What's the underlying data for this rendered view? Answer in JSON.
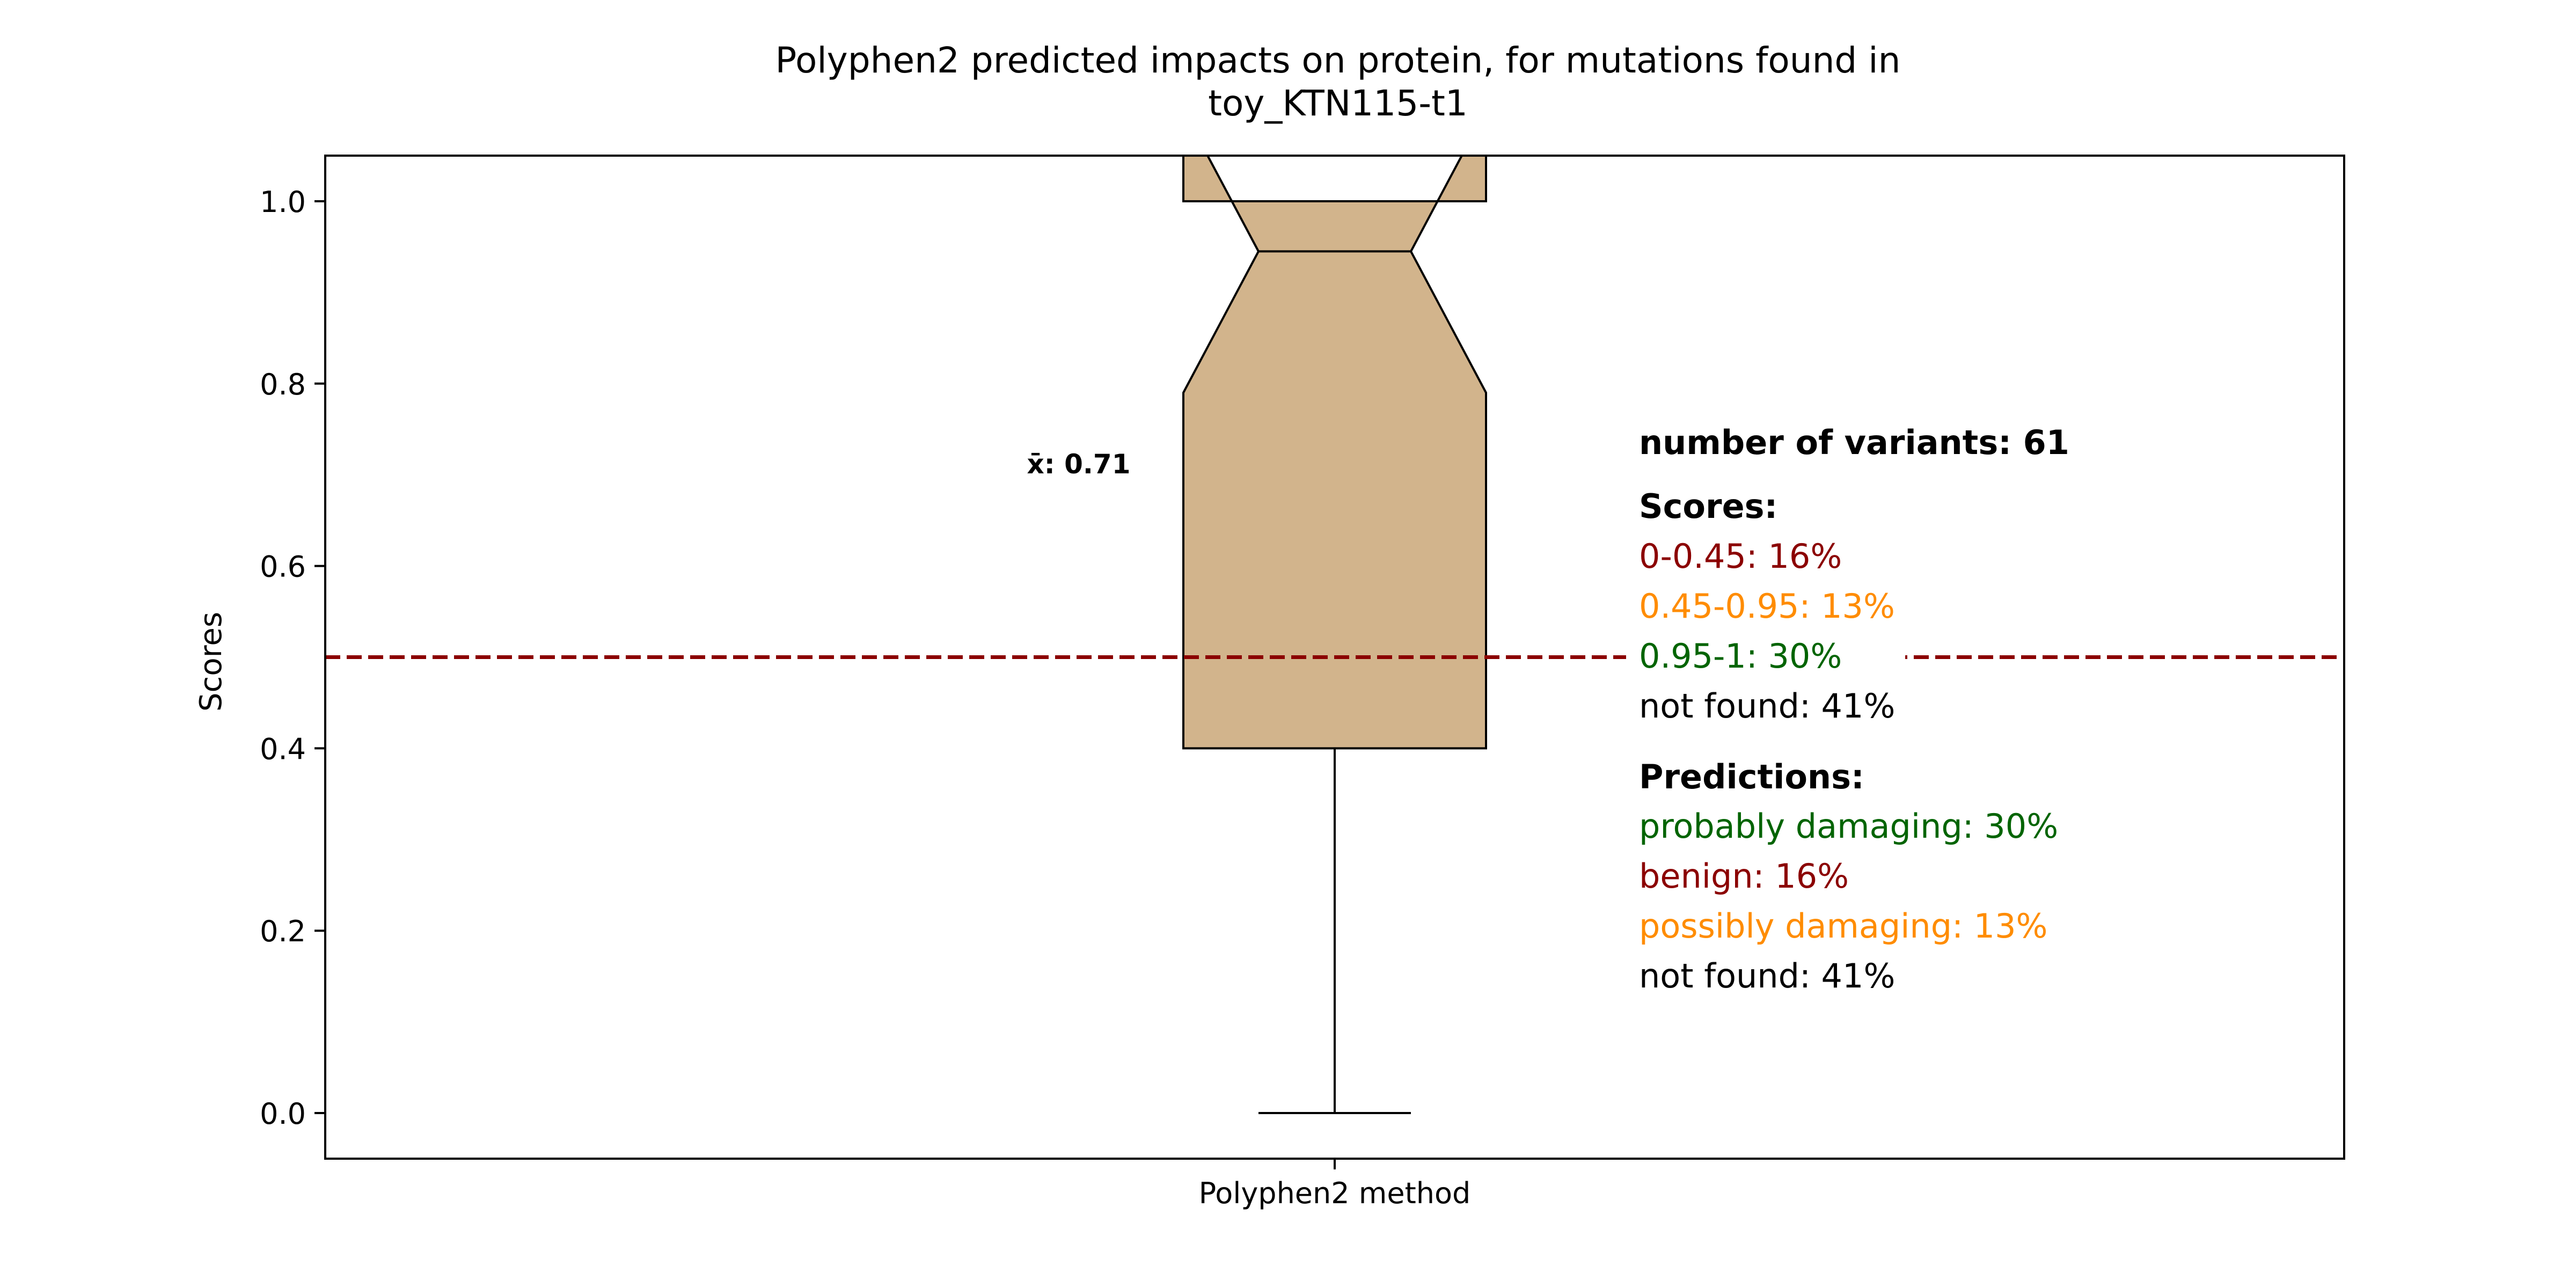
{
  "chart_data": {
    "type": "boxplot",
    "title_line1": "Polyphen2 predicted impacts on protein, for mutations found in",
    "title_line2": "toy_KTN115-t1",
    "ylabel": "Scores",
    "xlabel": "",
    "categories": [
      "Polyphen2 method"
    ],
    "ylim": [
      -0.05,
      1.05
    ],
    "yticks": [
      0.0,
      0.2,
      0.4,
      0.6,
      0.8,
      1.0
    ],
    "ytick_labels": [
      "0.0",
      "0.2",
      "0.4",
      "0.6",
      "0.8",
      "1.0"
    ],
    "grid": false,
    "box": {
      "notched": true,
      "min": 0.0,
      "q1": 0.4,
      "median": 0.945,
      "q3": 1.0,
      "max": 1.0,
      "notch_low": 0.79,
      "notch_high": 1.1,
      "fill_color": "#d2b48c",
      "edge_color": "#000000"
    },
    "threshold_line": {
      "y": 0.5,
      "color": "#8b0000",
      "style": "dashed"
    },
    "mean_label": "x̄: 0.71",
    "annotations": {
      "variants_heading": "number of variants: 61",
      "scores_heading": "Scores:",
      "scores": [
        {
          "text": "0-0.45: 16%",
          "color": "#8b0000"
        },
        {
          "text": "0.45-0.95: 13%",
          "color": "#ff8c00"
        },
        {
          "text": "0.95-1: 30%",
          "color": "#006400"
        },
        {
          "text": "not found: 41%",
          "color": "#000000"
        }
      ],
      "predictions_heading": "Predictions:",
      "predictions": [
        {
          "text": "probably damaging: 30%",
          "color": "#006400"
        },
        {
          "text": "benign: 16%",
          "color": "#8b0000"
        },
        {
          "text": "possibly damaging: 13%",
          "color": "#ff8c00"
        },
        {
          "text": "not found: 41%",
          "color": "#000000"
        }
      ]
    }
  }
}
